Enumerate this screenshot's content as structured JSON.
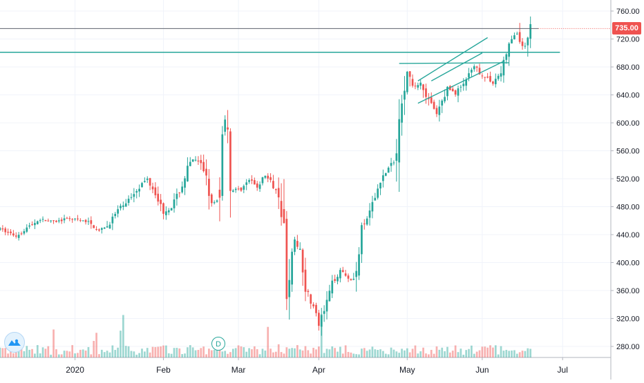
{
  "chart_data": {
    "type": "candlestick",
    "title": "",
    "y_axis": {
      "position": "right",
      "ylim": [
        262,
        770
      ],
      "ticks": [
        "760.00",
        "720.00",
        "680.00",
        "640.00",
        "600.00",
        "560.00",
        "520.00",
        "480.00",
        "440.00",
        "400.00",
        "360.00",
        "320.00",
        "280.00"
      ],
      "tick_values": [
        760,
        720,
        680,
        640,
        600,
        560,
        520,
        480,
        440,
        400,
        360,
        320,
        280
      ]
    },
    "x_axis": {
      "ticks": [
        "2020",
        "Feb",
        "Mar",
        "Apr",
        "May",
        "Jun",
        "Jul"
      ],
      "tick_dates": [
        "2020-01-01",
        "2020-02-03",
        "2020-03-02",
        "2020-04-01",
        "2020-05-04",
        "2020-06-01",
        "2020-07-01"
      ],
      "xlim": [
        "2019-12-04",
        "2020-07-19"
      ]
    },
    "last_price": 735.0,
    "last_price_label": "735.00",
    "price_path": [
      [
        "2019-12-04",
        448
      ],
      [
        "2019-12-10",
        438
      ],
      [
        "2019-12-14",
        450
      ],
      [
        "2019-12-19",
        462
      ],
      [
        "2019-12-24",
        458
      ],
      [
        "2019-12-30",
        463
      ],
      [
        "2020-01-06",
        458
      ],
      [
        "2020-01-10",
        445
      ],
      [
        "2020-01-13",
        452
      ],
      [
        "2020-01-17",
        475
      ],
      [
        "2020-01-21",
        490
      ],
      [
        "2020-01-24",
        505
      ],
      [
        "2020-01-28",
        520
      ],
      [
        "2020-01-31",
        500
      ],
      [
        "2020-02-03",
        472
      ],
      [
        "2020-02-06",
        480
      ],
      [
        "2020-02-10",
        510
      ],
      [
        "2020-02-12",
        535
      ],
      [
        "2020-02-14",
        548
      ],
      [
        "2020-02-17",
        540
      ],
      [
        "2020-02-19",
        525
      ],
      [
        "2020-02-21",
        483
      ],
      [
        "2020-02-24",
        490
      ],
      [
        "2020-02-25",
        598
      ],
      [
        "2020-02-27",
        608
      ],
      [
        "2020-02-28",
        504
      ],
      [
        "2020-03-03",
        505
      ],
      [
        "2020-03-06",
        518
      ],
      [
        "2020-03-09",
        508
      ],
      [
        "2020-03-12",
        525
      ],
      [
        "2020-03-14",
        515
      ],
      [
        "2020-03-17",
        500
      ],
      [
        "2020-03-19",
        448
      ],
      [
        "2020-03-20",
        360
      ],
      [
        "2020-03-23",
        430
      ],
      [
        "2020-03-25",
        420
      ],
      [
        "2020-03-27",
        365
      ],
      [
        "2020-03-30",
        336
      ],
      [
        "2020-04-01",
        310
      ],
      [
        "2020-04-03",
        330
      ],
      [
        "2020-04-06",
        370
      ],
      [
        "2020-04-09",
        390
      ],
      [
        "2020-04-13",
        375
      ],
      [
        "2020-04-15",
        385
      ],
      [
        "2020-04-17",
        445
      ],
      [
        "2020-04-21",
        482
      ],
      [
        "2020-04-24",
        518
      ],
      [
        "2020-04-28",
        540
      ],
      [
        "2020-04-30",
        552
      ],
      [
        "2020-05-01",
        620
      ],
      [
        "2020-05-04",
        672
      ],
      [
        "2020-05-06",
        650
      ],
      [
        "2020-05-09",
        658
      ],
      [
        "2020-05-12",
        632
      ],
      [
        "2020-05-15",
        612
      ],
      [
        "2020-05-19",
        650
      ],
      [
        "2020-05-22",
        642
      ],
      [
        "2020-05-26",
        662
      ],
      [
        "2020-05-29",
        680
      ],
      [
        "2020-06-02",
        665
      ],
      [
        "2020-06-05",
        658
      ],
      [
        "2020-06-08",
        672
      ],
      [
        "2020-06-10",
        700
      ],
      [
        "2020-06-12",
        720
      ],
      [
        "2020-06-14",
        728
      ],
      [
        "2020-06-16",
        708
      ],
      [
        "2020-06-18",
        715
      ],
      [
        "2020-06-19",
        742
      ],
      [
        "2020-06-20",
        735
      ]
    ],
    "annotations": [
      {
        "kind": "horizontal-line",
        "price": 735,
        "style": "dotted",
        "color": "#9c27b0",
        "label": "735.00"
      },
      {
        "kind": "horizontal-line",
        "price": 701,
        "style": "solid",
        "color": "#26a69a"
      },
      {
        "kind": "trendline",
        "from": [
          "2020-05-01",
          685
        ],
        "to": [
          "2020-06-11",
          686
        ],
        "color": "#26a69a"
      },
      {
        "kind": "trendline",
        "from": [
          "2020-05-08",
          628
        ],
        "to": [
          "2020-06-09",
          688
        ],
        "color": "#26a69a"
      },
      {
        "kind": "trendline",
        "from": [
          "2020-05-08",
          660
        ],
        "to": [
          "2020-06-03",
          722
        ],
        "color": "#26a69a"
      },
      {
        "kind": "trendline",
        "from": [
          "2020-05-13",
          660
        ],
        "to": [
          "2020-06-01",
          700
        ],
        "color": "#26a69a"
      },
      {
        "kind": "event-marker",
        "date": "2020-02-21",
        "label": "D"
      }
    ],
    "colors": {
      "up": "#26a69a",
      "down": "#ef5350",
      "grid": "#f0f3fa",
      "axis_text": "#131722",
      "badge": "#ef5350",
      "trend": "#26a69a",
      "price_line": "#9c27b0"
    },
    "grid": true
  },
  "ui": {
    "logo_icon": "tradingview-logo-icon",
    "dividend_marker_label": "D"
  }
}
